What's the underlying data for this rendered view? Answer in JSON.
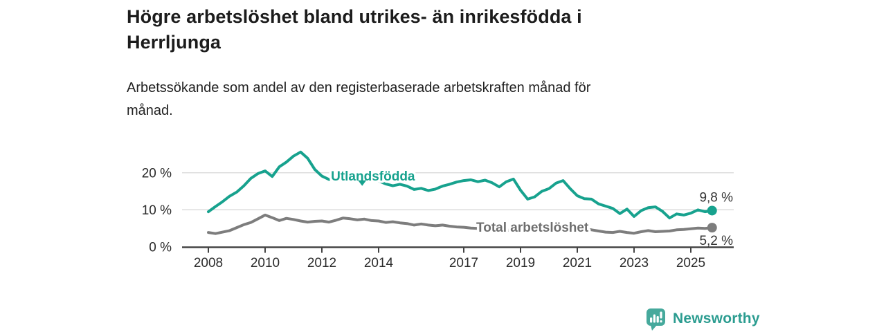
{
  "header": {
    "title_lines": [
      "Högre arbetslöshet bland utrikes- än inrikesfödda i",
      "Herrljunga"
    ],
    "subtitle_lines": [
      "Arbetssökande som andel av den registerbaserade arbetskraften månad för",
      "månad."
    ]
  },
  "footer": {
    "brand": "Newsworthy"
  },
  "colors": {
    "accent_teal": "#17a28e",
    "series_gray": "#7d7d7d",
    "gray_label": "#6e6e6e",
    "logo_icon_teal": "#46a99c",
    "logo_text_teal": "#2b9c90",
    "axis": "#434343",
    "grid": "#d4d4d4",
    "tick_text": "#2b2b2b",
    "end_label_text": "#333333",
    "title_text": "#1c1c1c"
  },
  "chart_data": {
    "type": "line",
    "title": "Högre arbetslöshet bland utrikes- än inrikesfödda i Herrljunga",
    "subtitle": "Arbetssökande som andel av den registerbaserade arbetskraften månad för månad.",
    "xlabel": "",
    "ylabel": "",
    "grid": "horizontal",
    "legend_position": "labels-on-lines",
    "x_start": 2008.0,
    "x_step": 0.25,
    "xlim": [
      2007.1,
      2026.5
    ],
    "ylim": [
      0,
      27
    ],
    "x_ticks": {
      "values": [
        2008,
        2010,
        2012,
        2014,
        2017,
        2019,
        2021,
        2023,
        2025
      ],
      "labels": [
        "2008",
        "2010",
        "2012",
        "2014",
        "2017",
        "2019",
        "2021",
        "2023",
        "2025"
      ]
    },
    "y_ticks": {
      "values": [
        0,
        10,
        20
      ],
      "labels": [
        "0 %",
        "10 %",
        "20 %"
      ]
    },
    "series": [
      {
        "key": "utlandsfodda",
        "name": "Utlandsfödda",
        "color": "#17a28e",
        "end_value": 9.8,
        "end_label": "9,8 %",
        "end_label_side": "above",
        "values": [
          9.5,
          10.9,
          12.2,
          13.7,
          14.8,
          16.5,
          18.5,
          19.8,
          20.5,
          19.0,
          21.6,
          22.9,
          24.5,
          25.6,
          23.9,
          20.9,
          19.1,
          18.2,
          18.9,
          18.4,
          18.8,
          18.2,
          18.5,
          18.0,
          17.8,
          17.0,
          16.5,
          16.9,
          16.4,
          15.5,
          15.8,
          15.2,
          15.6,
          16.4,
          16.9,
          17.5,
          17.9,
          18.1,
          17.6,
          18.0,
          17.3,
          16.2,
          17.6,
          18.3,
          15.3,
          12.9,
          13.5,
          15.0,
          15.7,
          17.2,
          17.9,
          15.7,
          13.8,
          13.0,
          12.9,
          11.6,
          11.0,
          10.4,
          9.0,
          10.2,
          8.2,
          9.8,
          10.6,
          10.8,
          9.6,
          7.8,
          8.9,
          8.6,
          9.1,
          10.0,
          9.5,
          9.8
        ]
      },
      {
        "key": "total-arbetsloshet",
        "name": "Total arbetslöshet",
        "color": "#7d7d7d",
        "end_value": 5.2,
        "end_label": "5,2 %",
        "end_label_side": "below",
        "values": [
          3.9,
          3.6,
          4.0,
          4.4,
          5.2,
          6.0,
          6.6,
          7.6,
          8.6,
          7.9,
          7.1,
          7.7,
          7.4,
          7.0,
          6.7,
          6.9,
          7.0,
          6.7,
          7.2,
          7.8,
          7.6,
          7.3,
          7.5,
          7.1,
          7.0,
          6.6,
          6.8,
          6.5,
          6.3,
          5.9,
          6.2,
          5.9,
          5.7,
          5.9,
          5.6,
          5.4,
          5.3,
          5.1,
          5.0,
          4.9,
          4.7,
          4.6,
          4.5,
          4.6,
          4.4,
          4.3,
          4.5,
          4.7,
          5.2,
          5.6,
          5.5,
          5.3,
          5.0,
          4.8,
          4.6,
          4.3,
          4.0,
          3.9,
          4.2,
          3.9,
          3.7,
          4.1,
          4.4,
          4.1,
          4.2,
          4.3,
          4.6,
          4.7,
          4.9,
          5.1,
          5.0,
          5.2
        ]
      }
    ],
    "series_labels": [
      {
        "key": "utlandsfodda",
        "text": "Utlandsfödda",
        "x_year": 2012.32,
        "y_pct": 19.2,
        "color": "#17a28e"
      },
      {
        "key": "total-arbetsloshet",
        "text": "Total arbetslöshet",
        "x_year": 2017.44,
        "y_pct": 5.4,
        "color": "#6e6e6e"
      }
    ],
    "annotations": [
      {
        "type": "triangle-down",
        "x_year": 2013.42,
        "y_pct": 17.2,
        "color": "#17a28e"
      }
    ]
  }
}
